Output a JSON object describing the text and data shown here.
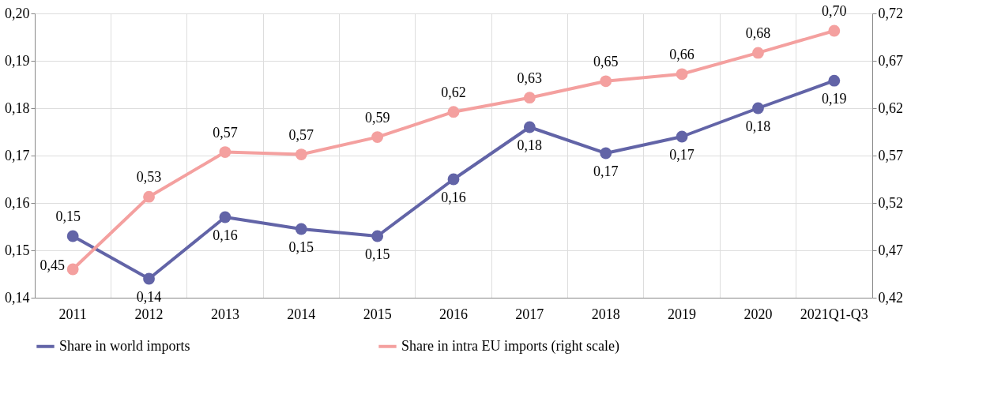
{
  "chart_data": {
    "type": "line",
    "categories": [
      "2011",
      "2012",
      "2013",
      "2014",
      "2015",
      "2016",
      "2017",
      "2018",
      "2019",
      "2020",
      "2021Q1-Q3"
    ],
    "series": [
      {
        "name": "Share in world imports",
        "color": "#6264a7",
        "values": [
          0.153,
          0.144,
          0.157,
          0.1545,
          0.153,
          0.165,
          0.176,
          0.1705,
          0.174,
          0.18,
          0.1858
        ],
        "value_labels": [
          "0,15",
          "0,14",
          "0,16",
          "0,15",
          "0,15",
          "0,16",
          "0,18",
          "0,17",
          "0,17",
          "0,18",
          "0,19"
        ]
      },
      {
        "name": "Share in intra EU imports (right scale)",
        "color": "#f4a09f",
        "axis": "y2",
        "values": [
          0.45,
          0.5265,
          0.5737,
          0.5712,
          0.5895,
          0.6161,
          0.6311,
          0.6485,
          0.656,
          0.6784,
          0.7017
        ],
        "value_labels": [
          "0,45",
          "0,53",
          "0,57",
          "0,57",
          "0,59",
          "0,62",
          "0,63",
          "0,65",
          "0,66",
          "0,68",
          "0,70"
        ]
      }
    ],
    "ylim": [
      0.14,
      0.2
    ],
    "yticks": [
      {
        "value": 0.14,
        "label": "0,14"
      },
      {
        "value": 0.15,
        "label": "0,15"
      },
      {
        "value": 0.16,
        "label": "0,16"
      },
      {
        "value": 0.17,
        "label": "0,17"
      },
      {
        "value": 0.18,
        "label": "0,18"
      },
      {
        "value": 0.19,
        "label": "0,19"
      },
      {
        "value": 0.2,
        "label": "0,20"
      }
    ],
    "y2lim": [
      0.42,
      0.72
    ],
    "y2ticks": [
      {
        "value": 0.42,
        "label": "0,42"
      },
      {
        "value": 0.47,
        "label": "0,47"
      },
      {
        "value": 0.52,
        "label": "0,52"
      },
      {
        "value": 0.57,
        "label": "0,57"
      },
      {
        "value": 0.62,
        "label": "0,62"
      },
      {
        "value": 0.67,
        "label": "0,67"
      },
      {
        "value": 0.72,
        "label": "0,72"
      }
    ],
    "grid": true,
    "legend": "bottom",
    "marker": "circle",
    "line_style": "solid"
  }
}
